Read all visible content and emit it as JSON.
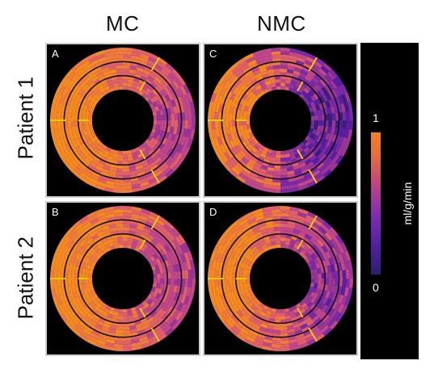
{
  "columns": [
    "MC",
    "NMC"
  ],
  "rows": [
    "Patient 1",
    "Patient 2"
  ],
  "panels": [
    {
      "label": "A",
      "base": "#f2801e",
      "variant": "uniform"
    },
    {
      "label": "C",
      "base": "#c0488a",
      "variant": "patchy"
    },
    {
      "label": "B",
      "base": "#e8753a",
      "variant": "uniform"
    },
    {
      "label": "D",
      "base": "#d25c6b",
      "variant": "mixed"
    }
  ],
  "colorbar": {
    "max_label": "1",
    "min_label": "0",
    "unit": "ml/g/min"
  },
  "colors": {
    "ring_line": "#111111",
    "marker": "#ffd400",
    "background": "#000000"
  }
}
